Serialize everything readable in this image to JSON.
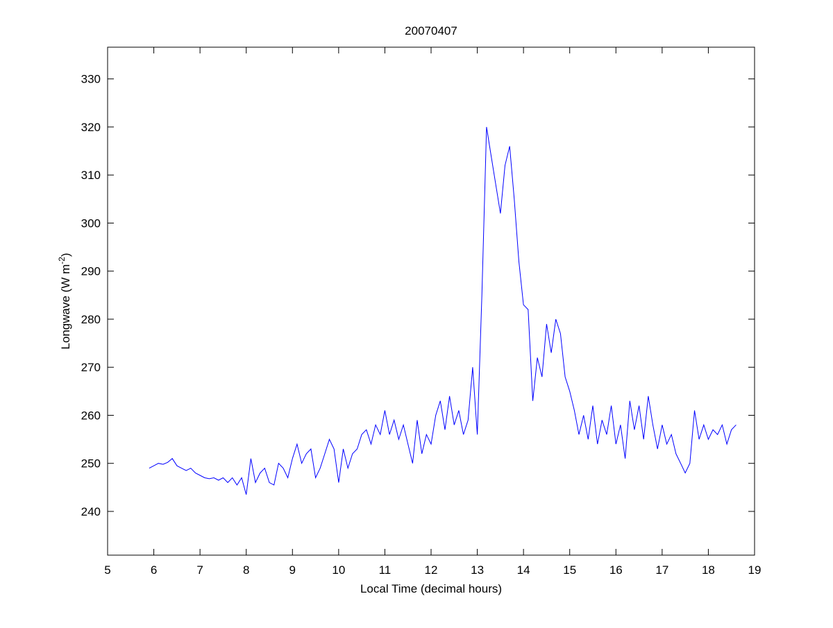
{
  "chart_data": {
    "type": "line",
    "title": "20070407",
    "xlabel": "Local Time (decimal hours)",
    "ylabel": "Longwave (W m",
    "ylabel_sup": "-2",
    "ylabel_end": ")",
    "xlim": [
      5,
      19
    ],
    "ylim": [
      230.9,
      336.6
    ],
    "xticks": [
      5,
      6,
      7,
      8,
      9,
      10,
      11,
      12,
      13,
      14,
      15,
      16,
      17,
      18,
      19
    ],
    "yticks": [
      240,
      250,
      260,
      270,
      280,
      290,
      300,
      310,
      320,
      330
    ],
    "grid": false,
    "line_color": "#0000ff",
    "series": [
      {
        "x": [
          5.9,
          6.0,
          6.1,
          6.2,
          6.3,
          6.4,
          6.5,
          6.6,
          6.7,
          6.8,
          6.9,
          7.0,
          7.1,
          7.2,
          7.3,
          7.4,
          7.5,
          7.6,
          7.7,
          7.8,
          7.9,
          8.0,
          8.1,
          8.2,
          8.3,
          8.4,
          8.5,
          8.6,
          8.7,
          8.8,
          8.9,
          9.0,
          9.1,
          9.2,
          9.3,
          9.4,
          9.5,
          9.6,
          9.7,
          9.8,
          9.9,
          10.0,
          10.1,
          10.2,
          10.3,
          10.4,
          10.5,
          10.6,
          10.7,
          10.8,
          10.9,
          11.0,
          11.1,
          11.2,
          11.3,
          11.4,
          11.5,
          11.6,
          11.7,
          11.8,
          11.9,
          12.0,
          12.1,
          12.2,
          12.3,
          12.4,
          12.5,
          12.6,
          12.7,
          12.8,
          12.9,
          13.0,
          13.1,
          13.2,
          13.3,
          13.4,
          13.5,
          13.6,
          13.7,
          13.8,
          13.9,
          14.0,
          14.1,
          14.2,
          14.3,
          14.4,
          14.5,
          14.6,
          14.7,
          14.8,
          14.9,
          15.0,
          15.1,
          15.2,
          15.3,
          15.4,
          15.5,
          15.6,
          15.7,
          15.8,
          15.9,
          16.0,
          16.1,
          16.2,
          16.3,
          16.4,
          16.5,
          16.6,
          16.7,
          16.8,
          16.9,
          17.0,
          17.1,
          17.2,
          17.3,
          17.4,
          17.5,
          17.6,
          17.7,
          17.8,
          17.9,
          18.0,
          18.1,
          18.2,
          18.3,
          18.4,
          18.5,
          18.6
        ],
        "y": [
          249,
          249.5,
          250,
          249.8,
          250.2,
          251,
          249.5,
          249,
          248.5,
          249,
          248,
          247.5,
          247,
          246.8,
          247,
          246.5,
          247,
          246,
          247,
          245.5,
          247,
          243.5,
          251,
          246,
          248,
          249,
          246,
          245.5,
          250,
          249,
          247,
          251,
          254,
          250,
          252,
          253,
          247,
          249,
          252,
          255,
          253,
          246,
          253,
          249,
          252,
          253,
          256,
          257,
          254,
          258,
          256,
          261,
          256,
          259,
          255,
          258,
          254,
          250,
          259,
          252,
          256,
          254,
          260,
          263,
          257,
          264,
          258,
          261,
          256,
          259,
          270,
          256,
          285,
          320,
          314,
          308,
          302,
          312,
          316,
          305,
          292,
          283,
          282,
          263,
          272,
          268,
          279,
          273,
          280,
          277,
          268,
          265,
          261,
          256,
          260,
          255,
          262,
          254,
          259,
          256,
          262,
          254,
          258,
          251,
          263,
          257,
          262,
          255,
          264,
          258,
          253,
          258,
          254,
          256,
          252,
          250,
          248,
          250,
          261,
          255,
          258,
          255,
          257,
          256,
          258,
          254,
          257,
          258
        ]
      }
    ]
  }
}
